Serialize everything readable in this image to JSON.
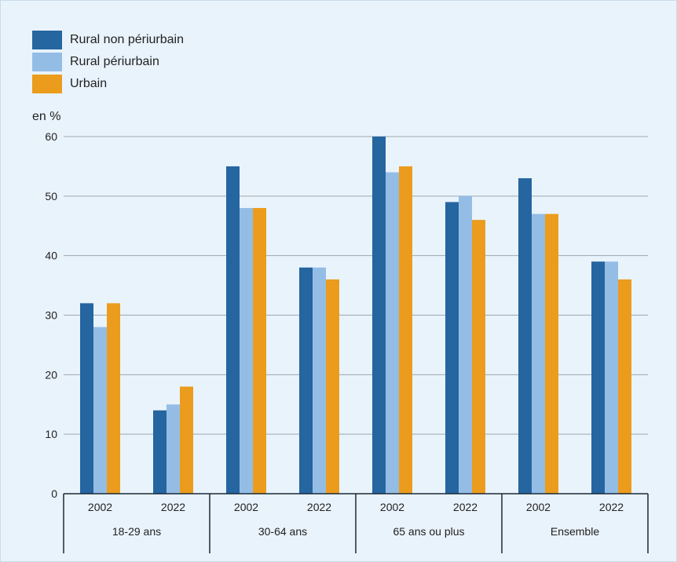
{
  "chart_data": {
    "type": "bar",
    "ylabel": "en %",
    "ylim": [
      0,
      60
    ],
    "yticks": [
      0,
      10,
      20,
      30,
      40,
      50,
      60
    ],
    "grid": true,
    "legend_position": "top-left",
    "groups": [
      "18-29 ans",
      "30-64 ans",
      "65 ans ou plus",
      "Ensemble"
    ],
    "years": [
      "2002",
      "2022"
    ],
    "series": [
      {
        "name": "Rural non périurbain",
        "color": "#2565a0",
        "values": [
          [
            32,
            14
          ],
          [
            55,
            38
          ],
          [
            60,
            49
          ],
          [
            53,
            39
          ]
        ]
      },
      {
        "name": "Rural périurbain",
        "color": "#94bde6",
        "values": [
          [
            28,
            15
          ],
          [
            48,
            38
          ],
          [
            54,
            50
          ],
          [
            47,
            39
          ]
        ]
      },
      {
        "name": "Urbain",
        "color": "#eb9c1d",
        "values": [
          [
            32,
            18
          ],
          [
            48,
            36
          ],
          [
            55,
            46
          ],
          [
            47,
            36
          ]
        ]
      }
    ]
  }
}
